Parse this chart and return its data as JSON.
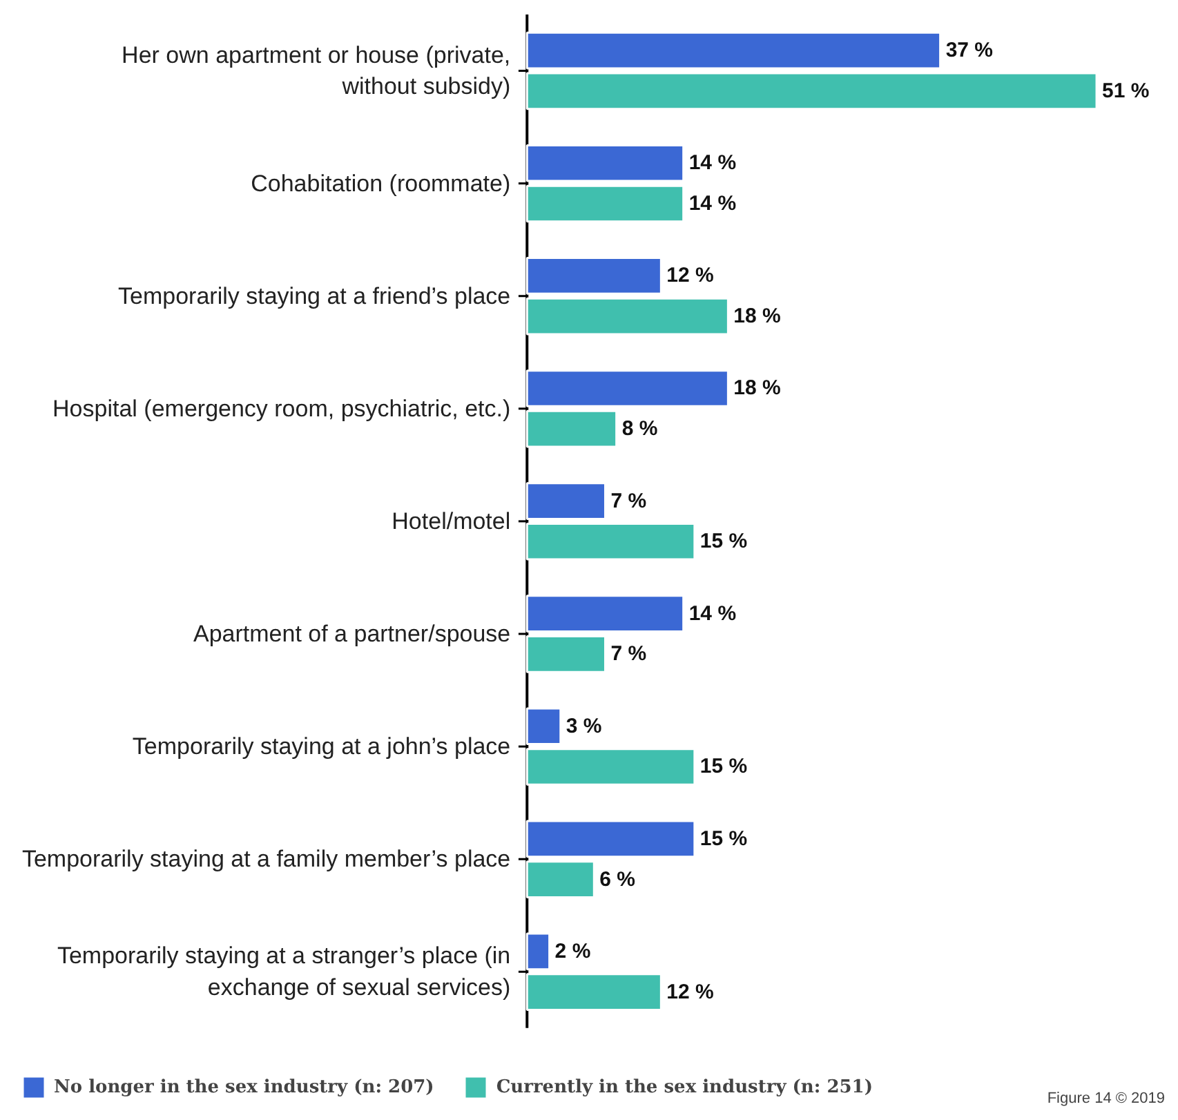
{
  "chart_data": {
    "type": "bar",
    "orientation": "horizontal",
    "legend": "bottom",
    "grid": false,
    "categories": [
      "Her own apartment or house (private,\nwithout subsidy)",
      "Cohabitation (roommate)",
      "Temporarily staying at a friend’s place",
      "Hospital (emergency room, psychiatric, etc.)",
      "Hotel/motel",
      "Apartment of a partner/spouse",
      "Temporarily staying at a john’s place",
      "Temporarily staying at a family member’s place",
      "Temporarily staying at a stranger’s place (in\nexchange of sexual services)"
    ],
    "series": [
      {
        "name": "No longer in the sex industry (n: 207)",
        "color": "#3b68d4",
        "values": [
          37,
          14,
          12,
          18,
          7,
          14,
          3,
          15,
          2
        ],
        "value_labels": [
          "37 %",
          "14 %",
          "12 %",
          "18 %",
          "7 %",
          "14 %",
          "3 %",
          "15 %",
          "2 %"
        ]
      },
      {
        "name": "Currently in the sex industry (n: 251)",
        "color": "#40bfae",
        "values": [
          51,
          14,
          18,
          8,
          15,
          7,
          15,
          6,
          12
        ],
        "value_labels": [
          "51 %",
          "14 %",
          "18 %",
          "8 %",
          "15 %",
          "7 %",
          "15 %",
          "6 %",
          "12 %"
        ]
      }
    ],
    "annotations": [
      "Figure 14 © 2019"
    ]
  }
}
